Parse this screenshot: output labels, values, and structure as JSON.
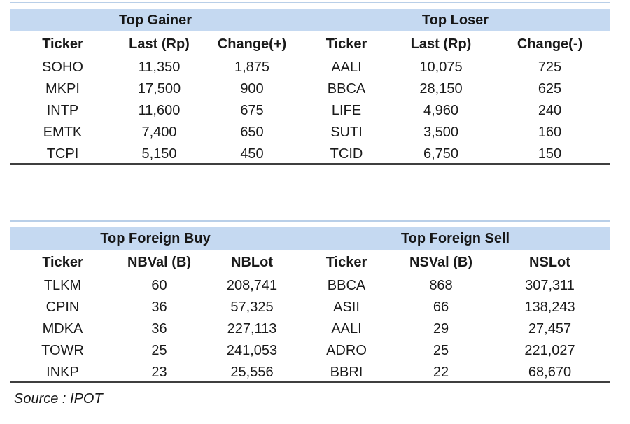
{
  "colors": {
    "band_fill": "#c5d9f1",
    "top_border": "#b9cfe8",
    "bottom_rule": "#3f3f3f",
    "text": "#1a1a1a",
    "background": "#ffffff"
  },
  "source": "Source : IPOT",
  "tables": [
    {
      "name": "gainer-loser",
      "sections": [
        {
          "title": "Top Gainer",
          "columns": [
            "Ticker",
            "Last (Rp)",
            "Change(+)"
          ],
          "rows": [
            [
              "SOHO",
              "11,350",
              "1,875"
            ],
            [
              "MKPI",
              "17,500",
              "900"
            ],
            [
              "INTP",
              "11,600",
              "675"
            ],
            [
              "EMTK",
              "7,400",
              "650"
            ],
            [
              "TCPI",
              "5,150",
              "450"
            ]
          ]
        },
        {
          "title": "Top Loser",
          "columns": [
            "Ticker",
            "Last (Rp)",
            "Change(-)"
          ],
          "rows": [
            [
              "AALI",
              "10,075",
              "725"
            ],
            [
              "BBCA",
              "28,150",
              "625"
            ],
            [
              "LIFE",
              "4,960",
              "240"
            ],
            [
              "SUTI",
              "3,500",
              "160"
            ],
            [
              "TCID",
              "6,750",
              "150"
            ]
          ]
        }
      ]
    },
    {
      "name": "foreign-buy-sell",
      "sections": [
        {
          "title": "Top Foreign Buy",
          "columns": [
            "Ticker",
            "NBVal (B)",
            "NBLot"
          ],
          "rows": [
            [
              "TLKM",
              "60",
              "208,741"
            ],
            [
              "CPIN",
              "36",
              "57,325"
            ],
            [
              "MDKA",
              "36",
              "227,113"
            ],
            [
              "TOWR",
              "25",
              "241,053"
            ],
            [
              "INKP",
              "23",
              "25,556"
            ]
          ]
        },
        {
          "title": "Top Foreign Sell",
          "columns": [
            "Ticker",
            "NSVal (B)",
            "NSLot"
          ],
          "rows": [
            [
              "BBCA",
              "868",
              "307,311"
            ],
            [
              "ASII",
              "66",
              "138,243"
            ],
            [
              "AALI",
              "29",
              "27,457"
            ],
            [
              "ADRO",
              "25",
              "221,027"
            ],
            [
              "BBRI",
              "22",
              "68,670"
            ]
          ]
        }
      ]
    }
  ]
}
